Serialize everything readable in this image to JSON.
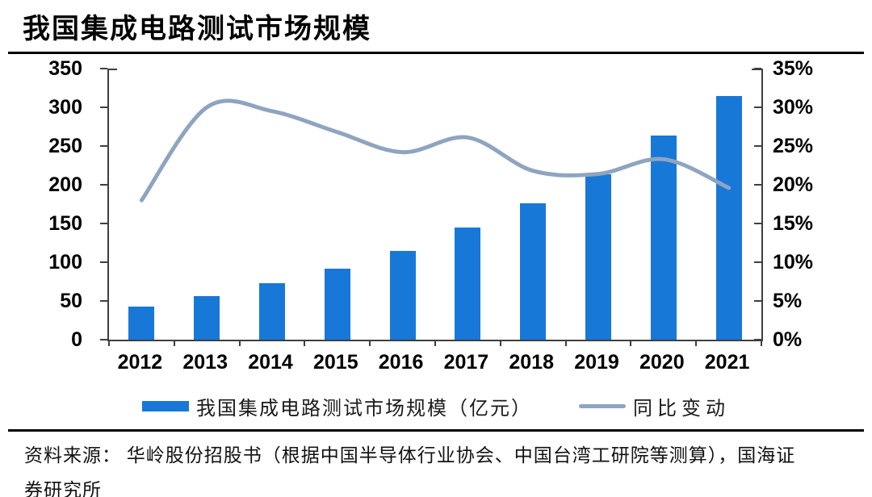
{
  "page": {
    "title": "我国集成电路测试市场规模"
  },
  "legend": {
    "bar_label": "我国集成电路测试市场规模（亿元）",
    "line_label": "同比变动"
  },
  "source": {
    "lines": [
      "资料来源： 华岭股份招股书（根据中国半导体行业协会、中国台湾工研院等测算），国海证",
      "券研究所"
    ]
  },
  "colors": {
    "bar": "#1878d8",
    "line": "#8ea4bf",
    "axis": "#3f3f3f",
    "rule": "#000000"
  },
  "chart_data": {
    "type": "bar",
    "title": "我国集成电路测试市场规模",
    "categories": [
      "2012",
      "2013",
      "2014",
      "2015",
      "2016",
      "2017",
      "2018",
      "2019",
      "2020",
      "2021"
    ],
    "series": [
      {
        "name": "我国集成电路测试市场规模（亿元）",
        "type": "bar",
        "axis": "left",
        "color": "#1878d8",
        "values": [
          43,
          56,
          73,
          92,
          115,
          145,
          176,
          214,
          264,
          315
        ]
      },
      {
        "name": "同比变动",
        "type": "line",
        "axis": "right",
        "color": "#8ea4bf",
        "values": [
          18.0,
          30.0,
          29.5,
          26.8,
          24.2,
          26.1,
          21.8,
          21.4,
          23.3,
          19.6
        ]
      }
    ],
    "left_axis": {
      "label": "",
      "min": 0,
      "max": 350,
      "step": 50,
      "tick_labels": [
        "350",
        "300",
        "250",
        "200",
        "150",
        "100",
        "50",
        "0"
      ]
    },
    "right_axis": {
      "label": "",
      "min": 0,
      "max": 35,
      "step": 5,
      "unit": "%",
      "tick_labels": [
        "35%",
        "30%",
        "25%",
        "20%",
        "15%",
        "10%",
        "5%",
        "0%"
      ]
    },
    "grid": false,
    "legend_position": "bottom",
    "xlabel": "",
    "ylabel": ""
  }
}
